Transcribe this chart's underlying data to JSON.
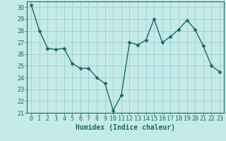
{
  "x": [
    0,
    1,
    2,
    3,
    4,
    5,
    6,
    7,
    8,
    9,
    10,
    11,
    12,
    13,
    14,
    15,
    16,
    17,
    18,
    19,
    20,
    21,
    22,
    23
  ],
  "y": [
    30.2,
    28.0,
    26.5,
    26.4,
    26.5,
    25.2,
    24.8,
    24.8,
    24.0,
    23.5,
    21.2,
    22.5,
    27.0,
    26.8,
    27.2,
    29.0,
    27.0,
    27.5,
    28.1,
    28.9,
    28.1,
    26.7,
    25.0,
    24.5
  ],
  "line_color": "#1a6b5e",
  "marker": "D",
  "markersize": 2.5,
  "linewidth": 1.0,
  "bg_color": "#c5eaea",
  "grid_color": "#9dcfcf",
  "xlabel": "Humidex (Indice chaleur)",
  "ylabel_ticks": [
    21,
    22,
    23,
    24,
    25,
    26,
    27,
    28,
    29,
    30
  ],
  "xlim": [
    -0.5,
    23.5
  ],
  "ylim": [
    21,
    30.5
  ],
  "xlabel_fontsize": 7,
  "tick_fontsize": 6,
  "axes_color": "#1a6b5e",
  "spine_color": "#1a6b5e"
}
